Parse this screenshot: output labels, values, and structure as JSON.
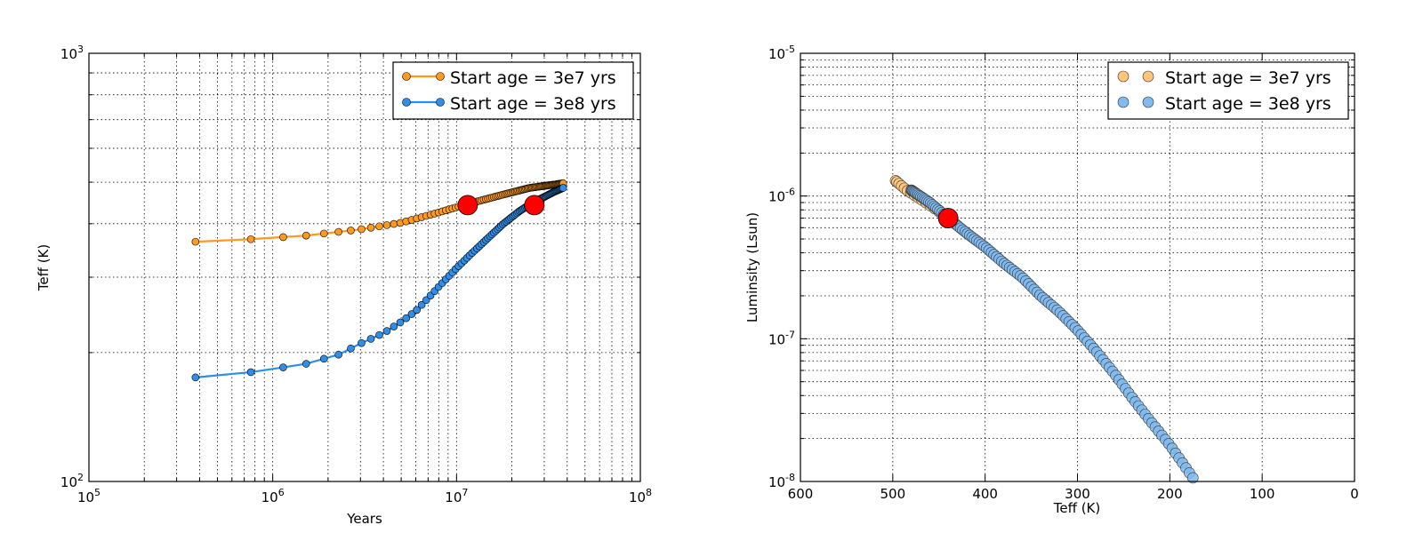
{
  "chart_data": [
    {
      "type": "line",
      "xlabel": "Years",
      "ylabel": "Teff (K)",
      "xscale": "log",
      "yscale": "log",
      "xlim": [
        100000,
        100000000
      ],
      "ylim": [
        100,
        1000
      ],
      "x_ticks": [
        {
          "base": "10",
          "exp": "5"
        },
        {
          "base": "10",
          "exp": "6"
        },
        {
          "base": "10",
          "exp": "7"
        },
        {
          "base": "10",
          "exp": "8"
        }
      ],
      "y_ticks": [
        {
          "base": "10",
          "exp": "2"
        },
        {
          "base": "10",
          "exp": "3"
        }
      ],
      "grid": true,
      "legend_position": "top-right",
      "series": [
        {
          "name": "Start age = 3e7 yrs",
          "color": "#ff9a1f",
          "x_start": 380000,
          "x_end": 38000000,
          "count": 100,
          "y": [
            [
              380000,
              363
            ],
            [
              760000,
              368
            ],
            [
              1500000,
              375
            ],
            [
              3000000,
              388
            ],
            [
              5000000,
              402
            ],
            [
              8000000,
              425
            ],
            [
              12000000,
              447
            ],
            [
              18000000,
              468
            ],
            [
              25000000,
              485
            ],
            [
              38000000,
              497
            ]
          ]
        },
        {
          "name": "Start age = 3e8 yrs",
          "color": "#2f8fe8",
          "x_start": 380000,
          "x_end": 38000000,
          "count": 100,
          "y": [
            [
              380000,
              175
            ],
            [
              760000,
              180
            ],
            [
              1500000,
              188
            ],
            [
              2300000,
              198
            ],
            [
              3000000,
              210
            ],
            [
              4000000,
              222
            ],
            [
              5000000,
              236
            ],
            [
              6000000,
              250
            ],
            [
              7000000,
              268
            ],
            [
              8000000,
              285
            ],
            [
              10000000,
              315
            ],
            [
              12000000,
              340
            ],
            [
              15000000,
              372
            ],
            [
              18000000,
              400
            ],
            [
              22000000,
              428
            ],
            [
              26000000,
              448
            ],
            [
              30000000,
              462
            ],
            [
              34000000,
              475
            ],
            [
              38000000,
              485
            ]
          ]
        }
      ],
      "markers": [
        {
          "x": 11500000,
          "y": 442,
          "color": "#ff0000"
        },
        {
          "x": 26500000,
          "y": 442,
          "color": "#ff0000"
        }
      ]
    },
    {
      "type": "scatter",
      "xlabel": "Teff (K)",
      "ylabel": "Luminsity (Lsun)",
      "xscale": "linear",
      "yscale": "log",
      "xlim": [
        600,
        0
      ],
      "ylim": [
        1e-08,
        1e-05
      ],
      "x_ticks": [
        "600",
        "500",
        "400",
        "300",
        "200",
        "100",
        "0"
      ],
      "x_tick_values": [
        600,
        500,
        400,
        300,
        200,
        100,
        0
      ],
      "y_ticks": [
        {
          "base": "10",
          "exp": "-8"
        },
        {
          "base": "10",
          "exp": "-7"
        },
        {
          "base": "10",
          "exp": "-6"
        },
        {
          "base": "10",
          "exp": "-5"
        }
      ],
      "grid": true,
      "legend_position": "top-right",
      "series": [
        {
          "name": "Start age = 3e7 yrs",
          "color": "#ffc57a",
          "curve": [
            [
              497,
              1.28e-06
            ],
            [
              485,
              1.1e-06
            ],
            [
              470,
              9.5e-07
            ],
            [
              455,
              8.2e-07
            ],
            [
              440,
              7e-07
            ]
          ],
          "count": 16
        },
        {
          "name": "Start age = 3e8 yrs",
          "color": "#7fbaf0",
          "curve": [
            [
              480,
              1.1e-06
            ],
            [
              460,
              9e-07
            ],
            [
              440,
              7e-07
            ],
            [
              420,
              5.5e-07
            ],
            [
              400,
              4.4e-07
            ],
            [
              380,
              3.4e-07
            ],
            [
              360,
              2.7e-07
            ],
            [
              340,
              2e-07
            ],
            [
              320,
              1.55e-07
            ],
            [
              300,
              1.15e-07
            ],
            [
              280,
              8.2e-08
            ],
            [
              260,
              5.7e-08
            ],
            [
              240,
              3.8e-08
            ],
            [
              220,
              2.6e-08
            ],
            [
              200,
              1.8e-08
            ],
            [
              188,
              1.4e-08
            ],
            [
              175,
              1.06e-08
            ]
          ],
          "count": 110
        }
      ],
      "markers": [
        {
          "x": 440,
          "y": 7e-07,
          "color": "#ff0000"
        }
      ]
    }
  ]
}
